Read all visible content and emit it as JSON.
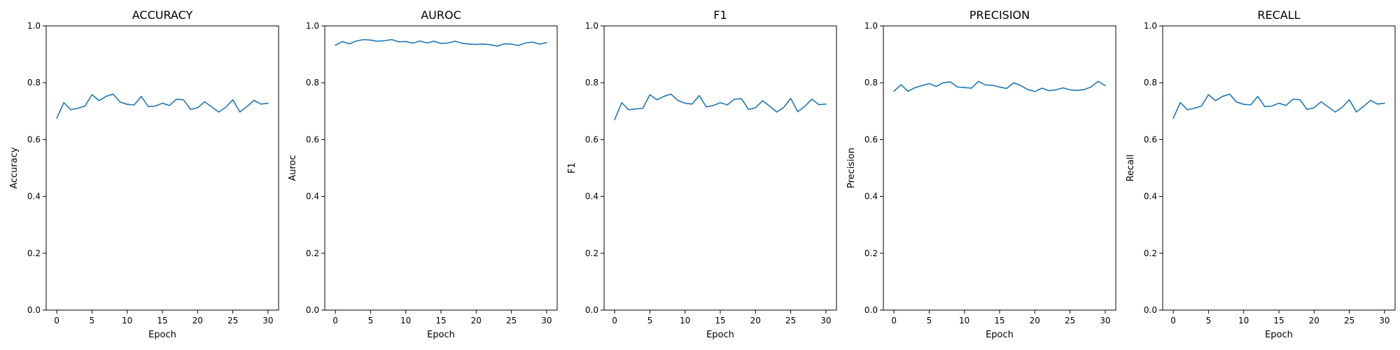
{
  "chart_data": [
    {
      "type": "line",
      "title": "ACCURACY",
      "xlabel": "Epoch",
      "ylabel": "Accuracy",
      "xlim": [
        -1.5,
        31.5
      ],
      "ylim": [
        0,
        1
      ],
      "xticks": [
        "0",
        "5",
        "10",
        "15",
        "20",
        "25",
        "30"
      ],
      "yticks": [
        "0.0",
        "0.2",
        "0.4",
        "0.6",
        "0.8",
        "1.0"
      ],
      "grid": false,
      "series": [
        {
          "x": [
            0,
            1,
            2,
            3,
            4,
            5,
            6,
            7,
            8,
            9,
            10,
            11,
            12,
            13,
            14,
            15,
            16,
            17,
            18,
            19,
            20,
            21,
            22,
            23,
            24,
            25,
            26,
            27,
            28,
            29,
            30
          ],
          "y": [
            0.675,
            0.73,
            0.705,
            0.71,
            0.718,
            0.758,
            0.737,
            0.752,
            0.76,
            0.732,
            0.724,
            0.722,
            0.752,
            0.716,
            0.718,
            0.728,
            0.72,
            0.742,
            0.74,
            0.706,
            0.712,
            0.733,
            0.715,
            0.697,
            0.714,
            0.74,
            0.697,
            0.716,
            0.738,
            0.725,
            0.728
          ]
        }
      ]
    },
    {
      "type": "line",
      "title": "AUROC",
      "xlabel": "Epoch",
      "ylabel": "Auroc",
      "xlim": [
        -1.5,
        31.5
      ],
      "ylim": [
        0,
        1
      ],
      "xticks": [
        "0",
        "5",
        "10",
        "15",
        "20",
        "25",
        "30"
      ],
      "yticks": [
        "0.0",
        "0.2",
        "0.4",
        "0.6",
        "0.8",
        "1.0"
      ],
      "grid": false,
      "series": [
        {
          "x": [
            0,
            1,
            2,
            3,
            4,
            5,
            6,
            7,
            8,
            9,
            10,
            11,
            12,
            13,
            14,
            15,
            16,
            17,
            18,
            19,
            20,
            21,
            22,
            23,
            24,
            25,
            26,
            27,
            28,
            29,
            30
          ],
          "y": [
            0.932,
            0.945,
            0.937,
            0.947,
            0.952,
            0.95,
            0.946,
            0.948,
            0.952,
            0.944,
            0.945,
            0.939,
            0.947,
            0.94,
            0.946,
            0.938,
            0.94,
            0.946,
            0.939,
            0.936,
            0.935,
            0.936,
            0.934,
            0.929,
            0.937,
            0.936,
            0.931,
            0.94,
            0.943,
            0.936,
            0.941
          ]
        }
      ]
    },
    {
      "type": "line",
      "title": "F1",
      "xlabel": "Epoch",
      "ylabel": "F1",
      "xlim": [
        -1.5,
        31.5
      ],
      "ylim": [
        0,
        1
      ],
      "xticks": [
        "0",
        "5",
        "10",
        "15",
        "20",
        "25",
        "30"
      ],
      "yticks": [
        "0.0",
        "0.2",
        "0.4",
        "0.6",
        "0.8",
        "1.0"
      ],
      "grid": false,
      "series": [
        {
          "x": [
            0,
            1,
            2,
            3,
            4,
            5,
            6,
            7,
            8,
            9,
            10,
            11,
            12,
            13,
            14,
            15,
            16,
            17,
            18,
            19,
            20,
            21,
            22,
            23,
            24,
            25,
            26,
            27,
            28,
            29,
            30
          ],
          "y": [
            0.67,
            0.73,
            0.705,
            0.708,
            0.71,
            0.758,
            0.74,
            0.752,
            0.76,
            0.737,
            0.728,
            0.725,
            0.755,
            0.715,
            0.72,
            0.73,
            0.722,
            0.742,
            0.744,
            0.706,
            0.712,
            0.737,
            0.718,
            0.697,
            0.713,
            0.745,
            0.698,
            0.717,
            0.742,
            0.723,
            0.725
          ]
        }
      ]
    },
    {
      "type": "line",
      "title": "PRECISION",
      "xlabel": "Epoch",
      "ylabel": "Precision",
      "xlim": [
        -1.5,
        31.5
      ],
      "ylim": [
        0,
        1
      ],
      "xticks": [
        "0",
        "5",
        "10",
        "15",
        "20",
        "25",
        "30"
      ],
      "yticks": [
        "0.0",
        "0.2",
        "0.4",
        "0.6",
        "0.8",
        "1.0"
      ],
      "grid": false,
      "series": [
        {
          "x": [
            0,
            1,
            2,
            3,
            4,
            5,
            6,
            7,
            8,
            9,
            10,
            11,
            12,
            13,
            14,
            15,
            16,
            17,
            18,
            19,
            20,
            21,
            22,
            23,
            24,
            25,
            26,
            27,
            28,
            29,
            30
          ],
          "y": [
            0.77,
            0.793,
            0.77,
            0.783,
            0.79,
            0.797,
            0.787,
            0.8,
            0.803,
            0.785,
            0.783,
            0.781,
            0.805,
            0.792,
            0.791,
            0.785,
            0.78,
            0.8,
            0.79,
            0.776,
            0.769,
            0.781,
            0.772,
            0.775,
            0.782,
            0.775,
            0.773,
            0.776,
            0.785,
            0.805,
            0.79
          ]
        }
      ]
    },
    {
      "type": "line",
      "title": "RECALL",
      "xlabel": "Epoch",
      "ylabel": "Recall",
      "xlim": [
        -1.5,
        31.5
      ],
      "ylim": [
        0,
        1
      ],
      "xticks": [
        "0",
        "5",
        "10",
        "15",
        "20",
        "25",
        "30"
      ],
      "yticks": [
        "0.0",
        "0.2",
        "0.4",
        "0.6",
        "0.8",
        "1.0"
      ],
      "grid": false,
      "series": [
        {
          "x": [
            0,
            1,
            2,
            3,
            4,
            5,
            6,
            7,
            8,
            9,
            10,
            11,
            12,
            13,
            14,
            15,
            16,
            17,
            18,
            19,
            20,
            21,
            22,
            23,
            24,
            25,
            26,
            27,
            28,
            29,
            30
          ],
          "y": [
            0.675,
            0.73,
            0.705,
            0.71,
            0.718,
            0.758,
            0.737,
            0.752,
            0.76,
            0.732,
            0.724,
            0.722,
            0.752,
            0.716,
            0.718,
            0.728,
            0.72,
            0.742,
            0.74,
            0.706,
            0.712,
            0.733,
            0.715,
            0.697,
            0.714,
            0.74,
            0.697,
            0.716,
            0.738,
            0.725,
            0.728
          ]
        }
      ]
    }
  ],
  "colors": {
    "line": "#1f77b4",
    "axes": "#000000",
    "background": "#ffffff"
  }
}
